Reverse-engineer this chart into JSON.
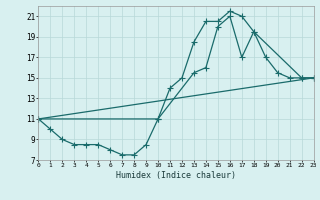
{
  "line1_x": [
    0,
    1,
    2,
    3,
    4,
    5,
    6,
    7,
    8,
    9,
    10,
    11,
    12,
    13,
    14,
    15,
    16,
    17,
    18,
    19,
    20,
    21,
    22,
    23
  ],
  "line1_y": [
    11,
    10,
    9,
    8.5,
    8.5,
    8.5,
    8.0,
    7.5,
    7.5,
    8.5,
    11,
    14,
    15,
    18.5,
    20.5,
    20.5,
    21.5,
    21,
    19.5,
    17,
    15.5,
    15,
    15,
    15
  ],
  "line2_x": [
    0,
    10,
    13,
    14,
    15,
    16,
    17,
    18,
    22,
    23
  ],
  "line2_y": [
    11,
    11,
    15.5,
    16,
    20,
    21,
    17,
    19.5,
    15,
    15
  ],
  "line3_x": [
    0,
    23
  ],
  "line3_y": [
    11,
    15
  ],
  "line_color": "#1a6b6b",
  "bg_color": "#d8f0f0",
  "grid_color": "#b8d8d8",
  "xlabel": "Humidex (Indice chaleur)",
  "xlim": [
    0,
    23
  ],
  "ylim": [
    7,
    22
  ],
  "yticks": [
    7,
    9,
    11,
    13,
    15,
    17,
    19,
    21
  ],
  "xticks": [
    0,
    1,
    2,
    3,
    4,
    5,
    6,
    7,
    8,
    9,
    10,
    11,
    12,
    13,
    14,
    15,
    16,
    17,
    18,
    19,
    20,
    21,
    22,
    23
  ]
}
